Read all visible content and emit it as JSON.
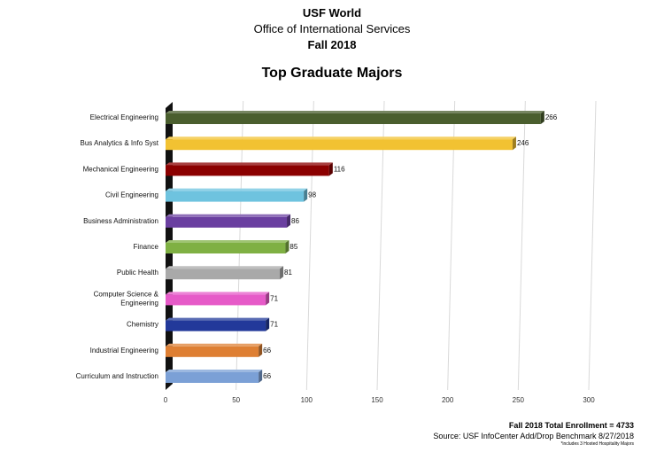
{
  "header": {
    "org": "USF World",
    "office": "Office of International Services",
    "term": "Fall 2018"
  },
  "chart_data": {
    "type": "bar",
    "orientation": "horizontal",
    "title": "Top Graduate Majors",
    "xlabel": "",
    "ylabel": "",
    "xlim": [
      0,
      300
    ],
    "ticks": [
      0,
      50,
      100,
      150,
      200,
      250,
      300
    ],
    "grid": true,
    "legend": "none",
    "categories": [
      "Electrical Engineering",
      "Bus Analytics & Info Syst",
      "Mechanical Engineering",
      "Civil Engineering",
      "Business Administration",
      "Finance",
      "Public Health",
      "Computer Science & Engineering",
      "Chemistry",
      "Industrial Engineering",
      "Curriculum and Instruction"
    ],
    "category_lines": [
      [
        "Electrical Engineering"
      ],
      [
        "Bus Analytics & Info Syst"
      ],
      [
        "Mechanical Engineering"
      ],
      [
        "Civil Engineering"
      ],
      [
        "Business Administration"
      ],
      [
        "Finance"
      ],
      [
        "Public Health"
      ],
      [
        "Computer Science &",
        "Engineering"
      ],
      [
        "Chemistry"
      ],
      [
        "Industrial Engineering"
      ],
      [
        "Curriculum and Instruction"
      ]
    ],
    "values": [
      266,
      246,
      116,
      98,
      86,
      85,
      81,
      71,
      71,
      66,
      66
    ],
    "colors": [
      "#4a5e2e",
      "#f2c232",
      "#8b0000",
      "#6ec3df",
      "#6a3fa0",
      "#7fb043",
      "#a9a9a9",
      "#e65ac8",
      "#22399a",
      "#de7f33",
      "#7ba0d6"
    ]
  },
  "footer": {
    "total": "Fall 2018 Total Enrollment = 4733",
    "source": "Source:  USF InfoCenter Add/Drop Benchmark 8/27/2018",
    "note": "*includes 3 Hosted Hospitality Majors"
  }
}
